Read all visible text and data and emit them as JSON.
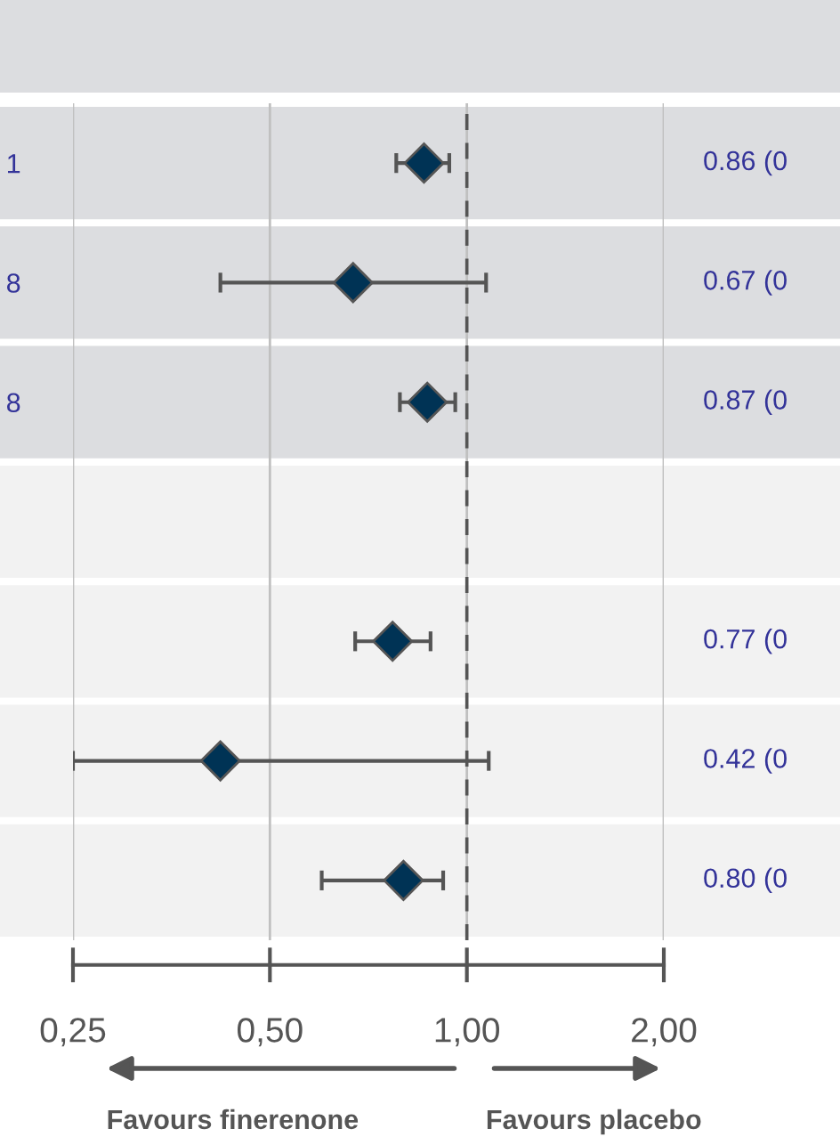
{
  "chart_data": {
    "type": "scatter",
    "orientation": "horizontal",
    "categories": [
      "1",
      "8",
      "8",
      null,
      null,
      null,
      null
    ],
    "values": [
      0.86,
      0.67,
      0.87,
      null,
      0.77,
      0.42,
      0.8
    ],
    "errors": [
      [
        0.78,
        0.94
      ],
      [
        0.42,
        1.07
      ],
      [
        0.79,
        0.96
      ],
      null,
      [
        0.675,
        0.88
      ],
      [
        0.25,
        1.08
      ],
      [
        0.6,
        0.92
      ]
    ],
    "value_labels": [
      "0.86 (0",
      "0.67 (0",
      "0.87 (0",
      null,
      "0.77 (0",
      "0.42 (0",
      "0.80 (0"
    ],
    "color": "#003355",
    "marker": "diamond",
    "log": "x",
    "xlim": [
      0.25,
      2.0
    ],
    "xticks": [
      {
        "value": 0.25,
        "label": "0,25"
      },
      {
        "value": 0.5,
        "label": "0,50"
      },
      {
        "value": 1.0,
        "label": "1,00"
      },
      {
        "value": 2.0,
        "label": "2,00"
      }
    ],
    "ref_lines": [
      {
        "axis": "x",
        "value": 1.0,
        "color": "#555555",
        "line_style": "dashed"
      }
    ],
    "grid": "x",
    "annotations": [
      "Favours finerenone",
      "Favours placebo"
    ]
  }
}
